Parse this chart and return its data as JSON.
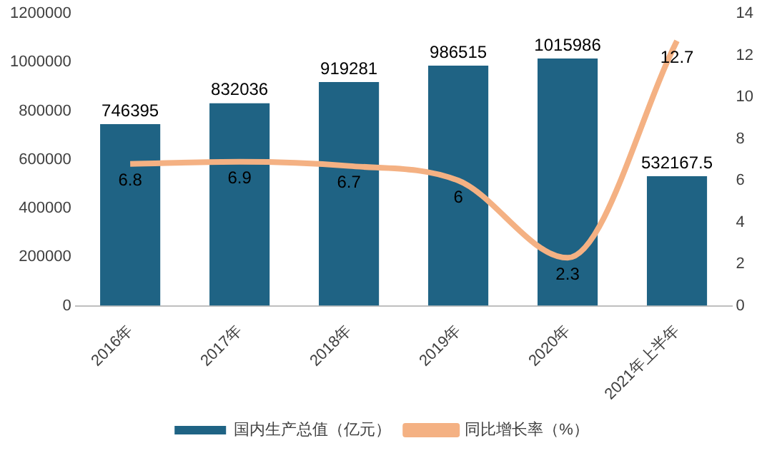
{
  "chart_data": {
    "type": "bar",
    "categories": [
      "2016年",
      "2017年",
      "2018年",
      "2019年",
      "2020年",
      "2021年上半年"
    ],
    "series": [
      {
        "name": "国内生产总值（亿元）",
        "color": "#1f6384",
        "values": [
          746395,
          832036,
          919281,
          986515,
          1015986,
          532167.5
        ]
      },
      {
        "name": "同比增长率（%）",
        "type": "line",
        "axis": "y2",
        "color": "#f4b183",
        "values": [
          6.8,
          6.9,
          6.7,
          6,
          2.3,
          12.7
        ]
      }
    ],
    "ylim": [
      0,
      1200000
    ],
    "yticks": [
      0,
      200000,
      400000,
      600000,
      800000,
      1000000,
      1200000
    ],
    "y2lim": [
      0,
      14
    ],
    "y2ticks": [
      0,
      2,
      4,
      6,
      8,
      10,
      12,
      14
    ],
    "data_labels": true,
    "legend": "bottom",
    "grid": false,
    "marker": "none",
    "line_style": "solid"
  }
}
